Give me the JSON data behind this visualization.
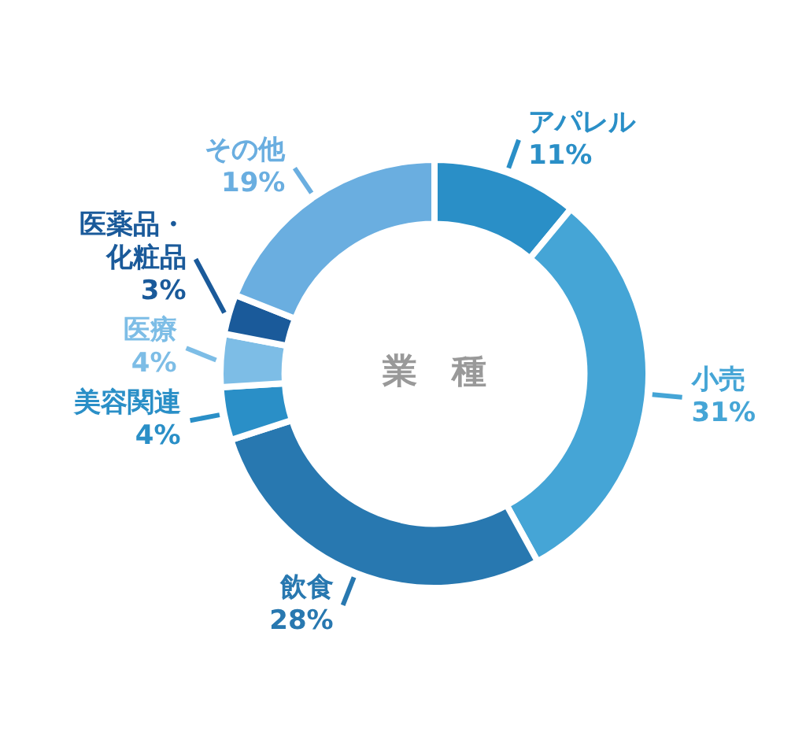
{
  "chart_data": {
    "type": "donut",
    "title": "業　種",
    "categories": [
      "アパレル",
      "小売",
      "飲食",
      "美容関連",
      "医療",
      "医薬品・化粧品",
      "その他"
    ],
    "values": [
      11,
      31,
      28,
      4,
      4,
      3,
      19
    ],
    "value_labels": [
      "11%",
      "31%",
      "28%",
      "4%",
      "4%",
      "3%",
      "19%"
    ],
    "colors": [
      "#2a8fc7",
      "#45a5d6",
      "#2878b0",
      "#2a8fc7",
      "#7dbde6",
      "#1a5a9a",
      "#6aaee0"
    ],
    "legend": false
  }
}
